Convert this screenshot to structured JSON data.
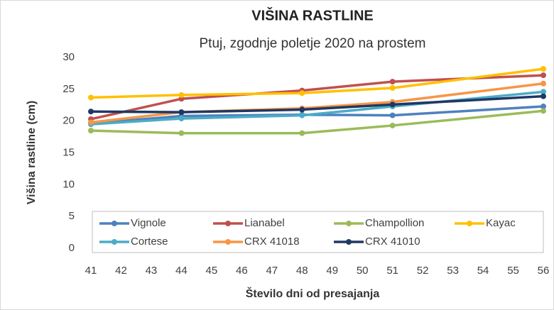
{
  "chart_data": {
    "type": "line",
    "title": "VIŠINA RASTLINE",
    "subtitle": "Ptuj, zgodnje poletje 2020 na prostem",
    "x_label": "Število dni od presajanja",
    "y_label": "Višina rastline (cm)",
    "x": [
      41,
      44,
      48,
      51,
      56
    ],
    "xlim": [
      41,
      56
    ],
    "xticks": [
      41,
      42,
      43,
      44,
      45,
      46,
      47,
      48,
      49,
      50,
      51,
      52,
      53,
      54,
      55,
      56
    ],
    "ylim": [
      0,
      30
    ],
    "yticks": [
      0,
      5,
      10,
      15,
      20,
      25,
      30
    ],
    "grid": false,
    "legend": "bottom",
    "series": [
      {
        "name": "Vignole",
        "color": "#4f81bd",
        "values": [
          19.6,
          20.8,
          21.0,
          20.9,
          22.3
        ]
      },
      {
        "name": "Lianabel",
        "color": "#c0504d",
        "values": [
          20.3,
          23.5,
          24.8,
          26.2,
          27.2
        ]
      },
      {
        "name": "Champollion",
        "color": "#9bbb59",
        "values": [
          18.5,
          18.1,
          18.1,
          19.3,
          21.6
        ]
      },
      {
        "name": "Kayac",
        "color": "#ffc000",
        "values": [
          23.7,
          24.1,
          24.4,
          25.2,
          28.2
        ]
      },
      {
        "name": "Cortese",
        "color": "#4bacc6",
        "values": [
          19.5,
          20.4,
          20.9,
          22.3,
          24.6
        ]
      },
      {
        "name": "CRX 41018",
        "color": "#f79646",
        "values": [
          19.8,
          21.4,
          22.0,
          23.0,
          25.9
        ]
      },
      {
        "name": "CRX 41010",
        "color": "#1f3864",
        "values": [
          21.5,
          21.4,
          21.8,
          22.6,
          23.9
        ]
      }
    ]
  }
}
